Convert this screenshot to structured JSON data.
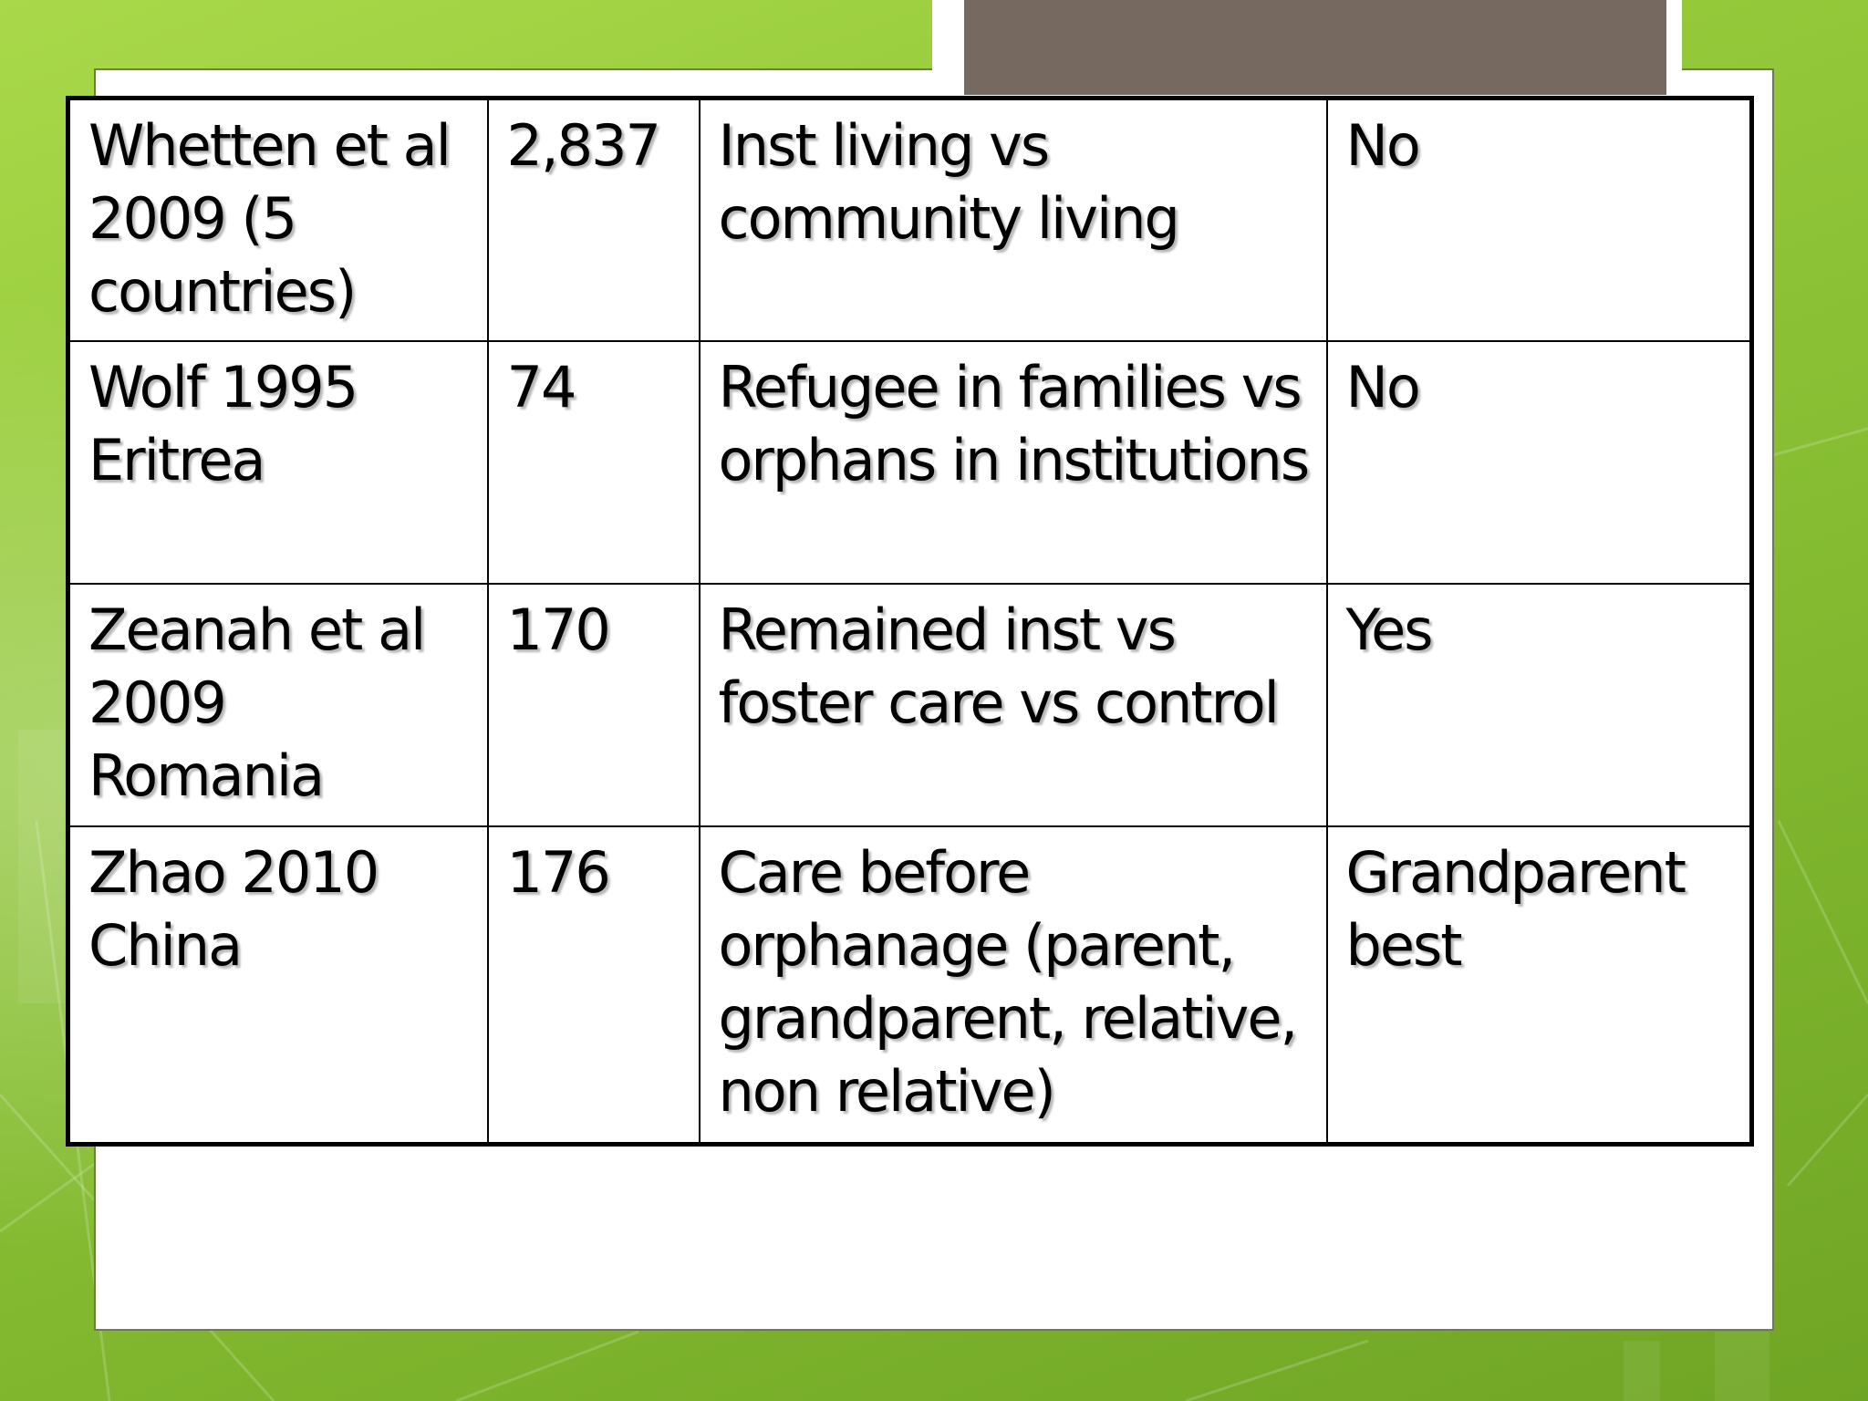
{
  "table": {
    "rows": [
      {
        "study": "Whetten et al 2009 (5 countries)",
        "n": "2,837",
        "comparison": "Inst living vs community living",
        "result": "No"
      },
      {
        "study": "Wolf 1995 Eritrea",
        "n": "74",
        "comparison": "Refugee in families vs orphans in institutions",
        "result": "No"
      },
      {
        "study": "Zeanah et al 2009 Romania",
        "n": "170",
        "comparison": "Remained inst vs foster care vs control",
        "result": "Yes"
      },
      {
        "study": "Zhao 2010 China",
        "n": "176",
        "comparison": "Care before orphanage (parent, grandparent, relative, non relative)",
        "result": "Grandparent best"
      }
    ]
  },
  "colors": {
    "background_green": "#8fc439",
    "title_tab": "#766a60",
    "panel": "#ffffff",
    "text": "#000000"
  }
}
